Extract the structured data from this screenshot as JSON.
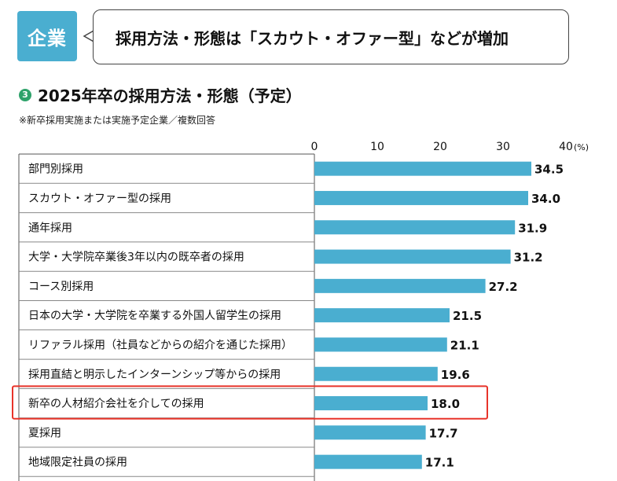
{
  "tag": {
    "label": "企業"
  },
  "bubble": {
    "text": "採用方法・形態は「スカウト・オファー型」などが増加"
  },
  "heading": {
    "number": "3",
    "title": "2025年卒の採用方法・形態（予定）"
  },
  "note": "※新卒採用実施または実施予定企業／複数回答",
  "colors": {
    "bar": "#4aaed0",
    "highlight": "#e8342a",
    "tag": "#4aaed0",
    "number_badge": "#2ea26a"
  },
  "chart_data": {
    "type": "bar",
    "orientation": "horizontal",
    "unit": "(%)",
    "xlim": [
      0,
      40
    ],
    "ticks": [
      "0",
      "10",
      "20",
      "30",
      "40"
    ],
    "grid": false,
    "categories": [
      "部門別採用",
      "スカウト・オファー型の採用",
      "通年採用",
      "大学・大学院卒業後3年以内の既卒者の採用",
      "コース別採用",
      "日本の大学・大学院を卒業する外国人留学生の採用",
      "リファラル採用（社員などからの紹介を通じた採用）",
      "採用直結と明示したインターンシップ等からの採用",
      "新卒の人材紹介会社を介しての採用",
      "夏採用",
      "地域限定社員の採用"
    ],
    "values": [
      34.5,
      34.0,
      31.9,
      31.2,
      27.2,
      21.5,
      21.1,
      19.6,
      18.0,
      17.7,
      17.1
    ],
    "value_labels": [
      "34.5",
      "34.0",
      "31.9",
      "31.2",
      "27.2",
      "21.5",
      "21.1",
      "19.6",
      "18.0",
      "17.7",
      "17.1"
    ],
    "highlighted_category": "新卒の人材紹介会社を介しての採用"
  }
}
